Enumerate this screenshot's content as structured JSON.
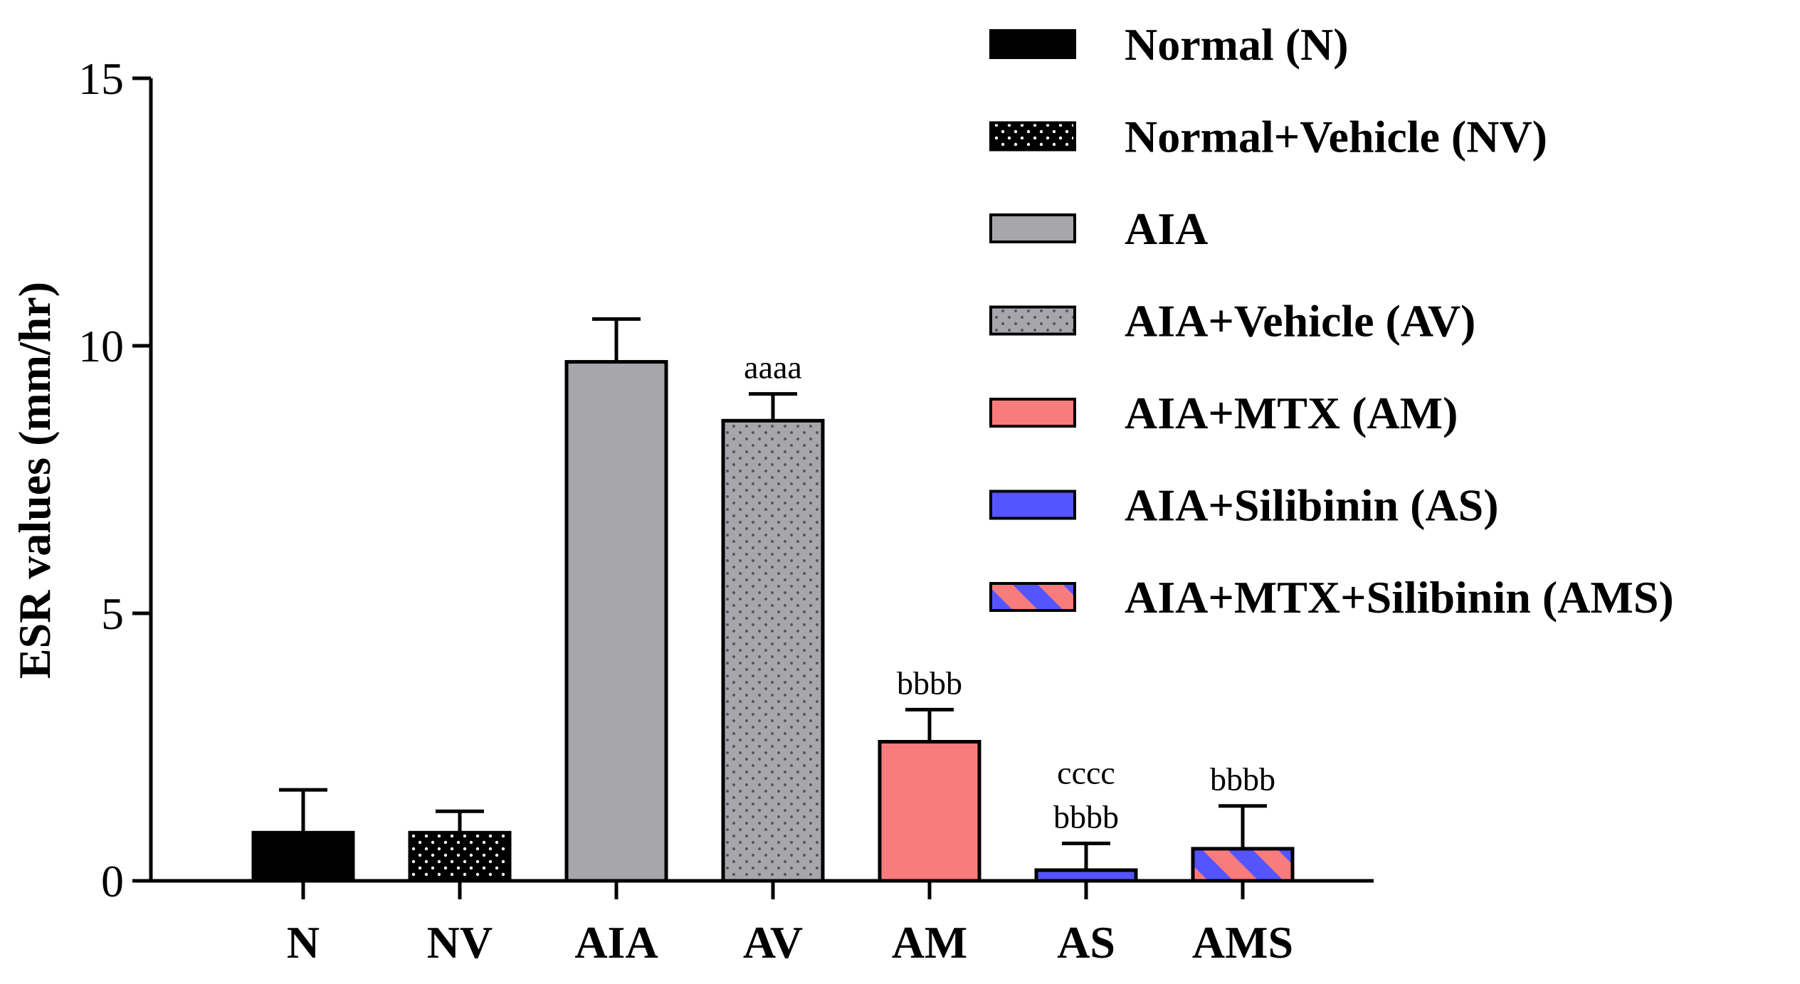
{
  "chart_data": {
    "type": "bar",
    "ylabel": "ESR values (mm/hr)",
    "xlabel": "",
    "ylim": [
      0,
      15
    ],
    "yticks": [
      "0",
      "5",
      "10",
      "15"
    ],
    "categories": [
      "N",
      "NV",
      "AIA",
      "AV",
      "AM",
      "AS",
      "AMS"
    ],
    "values": [
      0.9,
      0.9,
      9.7,
      8.6,
      2.6,
      0.2,
      0.6
    ],
    "errors": [
      0.8,
      0.4,
      0.8,
      0.5,
      0.6,
      0.5,
      0.8
    ],
    "annotations": [
      [],
      [],
      [],
      [
        "aaaa"
      ],
      [
        "bbbb"
      ],
      [
        "cccc",
        "bbbb"
      ],
      [
        "bbbb"
      ]
    ],
    "legend_position": "top-right",
    "legend": [
      {
        "label": "Normal (N)",
        "fill": "solid",
        "color": "#000000"
      },
      {
        "label": "Normal+Vehicle (NV)",
        "fill": "dots-white",
        "color": "#000000"
      },
      {
        "label": "AIA",
        "fill": "solid",
        "color": "#a6a6ab"
      },
      {
        "label": "AIA+Vehicle (AV)",
        "fill": "dots-dark",
        "color": "#a6a6ab"
      },
      {
        "label": "AIA+MTX (AM)",
        "fill": "solid",
        "color": "#f97c7c"
      },
      {
        "label": "AIA+Silibinin (AS)",
        "fill": "solid",
        "color": "#5555ff"
      },
      {
        "label": "AIA+MTX+Silibinin (AMS)",
        "fill": "stripes",
        "color": "#5555ff",
        "stripe_color": "#f97c7c"
      }
    ]
  }
}
